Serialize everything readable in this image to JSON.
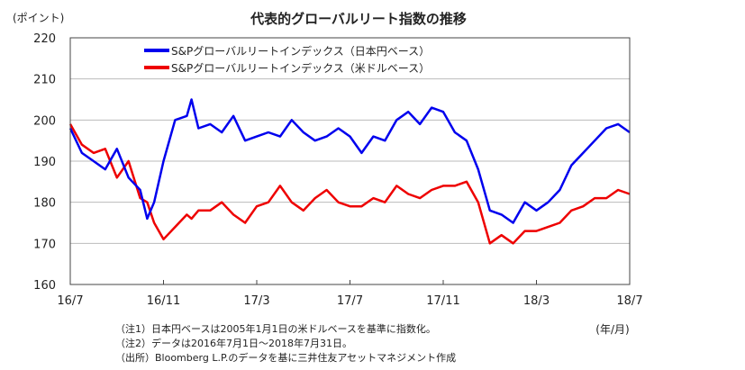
{
  "chart_data": {
    "type": "line",
    "title": "代表的グローバルリート指数の推移",
    "ylabel": "(ポイント)",
    "xlabel": "(年/月)",
    "ylim": [
      160,
      220
    ],
    "yticks": [
      160,
      170,
      180,
      190,
      200,
      210,
      220
    ],
    "xlim": [
      0,
      24
    ],
    "xticks": [
      {
        "t": 0,
        "label": "16/7"
      },
      {
        "t": 4,
        "label": "16/11"
      },
      {
        "t": 8,
        "label": "17/3"
      },
      {
        "t": 12,
        "label": "17/7"
      },
      {
        "t": 16,
        "label": "17/11"
      },
      {
        "t": 20,
        "label": "18/3"
      },
      {
        "t": 24,
        "label": "18/7"
      }
    ],
    "x_unit": "months since 2016/7",
    "grid": true,
    "legend_position": "top-left",
    "series": [
      {
        "name": "S&Pグローバルリートインデックス（日本円ベース）",
        "color": "#0000ee",
        "x": [
          0,
          0.5,
          1,
          1.5,
          2,
          2.5,
          3,
          3.3,
          3.6,
          4,
          4.5,
          5,
          5.2,
          5.5,
          6,
          6.5,
          7,
          7.5,
          8,
          8.5,
          9,
          9.5,
          10,
          10.5,
          11,
          11.5,
          12,
          12.5,
          13,
          13.5,
          14,
          14.5,
          15,
          15.5,
          16,
          16.5,
          17,
          17.5,
          18,
          18.5,
          19,
          19.5,
          20,
          20.5,
          21,
          21.5,
          22,
          22.5,
          23,
          23.5,
          24
        ],
        "values": [
          198,
          192,
          190,
          188,
          193,
          186,
          183,
          176,
          180,
          190,
          200,
          201,
          205,
          198,
          199,
          197,
          201,
          195,
          196,
          197,
          196,
          200,
          197,
          195,
          196,
          198,
          196,
          192,
          196,
          195,
          200,
          202,
          199,
          203,
          202,
          197,
          195,
          188,
          178,
          177,
          175,
          180,
          178,
          180,
          183,
          189,
          192,
          195,
          198,
          199,
          197
        ]
      },
      {
        "name": "S&Pグローバルリートインデックス（米ドルベース）",
        "color": "#ee0000",
        "x": [
          0,
          0.5,
          1,
          1.5,
          2,
          2.5,
          3,
          3.3,
          3.6,
          4,
          4.5,
          5,
          5.2,
          5.5,
          6,
          6.5,
          7,
          7.5,
          8,
          8.5,
          9,
          9.5,
          10,
          10.5,
          11,
          11.5,
          12,
          12.5,
          13,
          13.5,
          14,
          14.5,
          15,
          15.5,
          16,
          16.5,
          17,
          17.5,
          18,
          18.5,
          19,
          19.5,
          20,
          20.5,
          21,
          21.5,
          22,
          22.5,
          23,
          23.5,
          24
        ],
        "values": [
          199,
          194,
          192,
          193,
          186,
          190,
          181,
          180,
          175,
          171,
          174,
          177,
          176,
          178,
          178,
          180,
          177,
          175,
          179,
          180,
          184,
          180,
          178,
          181,
          183,
          180,
          179,
          179,
          181,
          180,
          184,
          182,
          181,
          183,
          184,
          184,
          185,
          180,
          170,
          172,
          170,
          173,
          173,
          174,
          175,
          178,
          179,
          181,
          181,
          183,
          182
        ]
      }
    ],
    "notes": [
      "（注1）日本円ベースは2005年1月1日の米ドルベースを基準に指数化。",
      "（注2）データは2016年7月1日～2018年7月31日。",
      "（出所）Bloomberg L.P.のデータを基に三井住友アセットマネジメント作成"
    ]
  }
}
